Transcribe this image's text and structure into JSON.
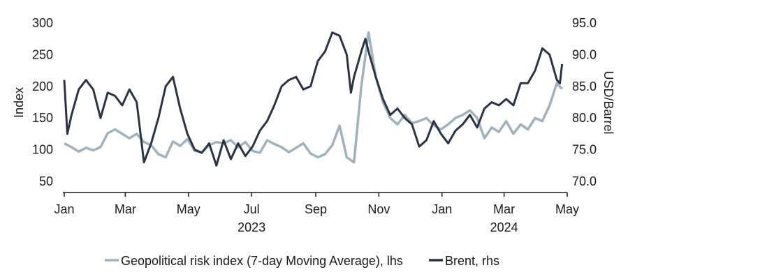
{
  "chart_data": {
    "type": "line",
    "title": "",
    "ylabel_left": "Index",
    "ylabel_right": "USD/Barrel",
    "ylim_left": [
      50,
      300
    ],
    "ylim_right": [
      70,
      95
    ],
    "yticks_left": [
      "300",
      "250",
      "200",
      "150",
      "100",
      "50"
    ],
    "yticks_right": [
      "95.0",
      "90.0",
      "85.0",
      "80.0",
      "75.0",
      "70.0"
    ],
    "x_tick_labels": [
      "Jan",
      "Mar",
      "May",
      "Jul",
      "Sep",
      "Nov",
      "Jan",
      "Mar",
      "May"
    ],
    "x_ticks": [
      "2023-01-01",
      "2023-03-01",
      "2023-05-01",
      "2023-07-01",
      "2023-09-01",
      "2023-11-01",
      "2024-01-01",
      "2024-03-01",
      "2024-05-01"
    ],
    "x_year_labels": [
      {
        "label": "2023",
        "date": "2023-07-01"
      },
      {
        "label": "2024",
        "date": "2024-03-01"
      }
    ],
    "xlim": [
      "2023-01-01",
      "2024-05-01"
    ],
    "grid": false,
    "legend_position": "bottom",
    "series": [
      {
        "name": "Geopolitical risk index (7-day Moving Average), lhs",
        "axis": "left",
        "color": "#9fb3bd",
        "points": [
          [
            "2023-01-01",
            110
          ],
          [
            "2023-01-08",
            104
          ],
          [
            "2023-01-15",
            97
          ],
          [
            "2023-01-22",
            103
          ],
          [
            "2023-01-29",
            99
          ],
          [
            "2023-02-05",
            104
          ],
          [
            "2023-02-12",
            126
          ],
          [
            "2023-02-19",
            132
          ],
          [
            "2023-02-26",
            125
          ],
          [
            "2023-03-05",
            118
          ],
          [
            "2023-03-12",
            125
          ],
          [
            "2023-03-19",
            112
          ],
          [
            "2023-03-26",
            107
          ],
          [
            "2023-04-02",
            93
          ],
          [
            "2023-04-09",
            88
          ],
          [
            "2023-04-16",
            113
          ],
          [
            "2023-04-23",
            106
          ],
          [
            "2023-04-30",
            117
          ],
          [
            "2023-05-07",
            98
          ],
          [
            "2023-05-14",
            96
          ],
          [
            "2023-05-21",
            107
          ],
          [
            "2023-05-28",
            112
          ],
          [
            "2023-06-04",
            110
          ],
          [
            "2023-06-11",
            115
          ],
          [
            "2023-06-18",
            104
          ],
          [
            "2023-06-25",
            112
          ],
          [
            "2023-07-02",
            98
          ],
          [
            "2023-07-09",
            95
          ],
          [
            "2023-07-16",
            115
          ],
          [
            "2023-07-23",
            109
          ],
          [
            "2023-07-30",
            104
          ],
          [
            "2023-08-06",
            96
          ],
          [
            "2023-08-13",
            103
          ],
          [
            "2023-08-20",
            110
          ],
          [
            "2023-08-27",
            94
          ],
          [
            "2023-09-03",
            88
          ],
          [
            "2023-09-10",
            93
          ],
          [
            "2023-09-17",
            107
          ],
          [
            "2023-09-24",
            138
          ],
          [
            "2023-10-01",
            88
          ],
          [
            "2023-10-08",
            80
          ],
          [
            "2023-10-15",
            200
          ],
          [
            "2023-10-22",
            285
          ],
          [
            "2023-10-29",
            215
          ],
          [
            "2023-11-05",
            175
          ],
          [
            "2023-11-12",
            150
          ],
          [
            "2023-11-19",
            140
          ],
          [
            "2023-11-26",
            155
          ],
          [
            "2023-12-03",
            142
          ],
          [
            "2023-12-10",
            145
          ],
          [
            "2023-12-17",
            150
          ],
          [
            "2023-12-24",
            138
          ],
          [
            "2023-12-31",
            132
          ],
          [
            "2024-01-07",
            140
          ],
          [
            "2024-01-14",
            150
          ],
          [
            "2024-01-21",
            155
          ],
          [
            "2024-01-28",
            162
          ],
          [
            "2024-02-04",
            150
          ],
          [
            "2024-02-11",
            118
          ],
          [
            "2024-02-18",
            135
          ],
          [
            "2024-02-25",
            128
          ],
          [
            "2024-03-03",
            145
          ],
          [
            "2024-03-10",
            125
          ],
          [
            "2024-03-17",
            140
          ],
          [
            "2024-03-24",
            132
          ],
          [
            "2024-03-31",
            150
          ],
          [
            "2024-04-07",
            145
          ],
          [
            "2024-04-14",
            170
          ],
          [
            "2024-04-21",
            205
          ],
          [
            "2024-04-26",
            196
          ]
        ]
      },
      {
        "name": "Brent, rhs",
        "axis": "right",
        "color": "#2b3445",
        "points": [
          [
            "2023-01-01",
            86.0
          ],
          [
            "2023-01-04",
            77.5
          ],
          [
            "2023-01-08",
            80.5
          ],
          [
            "2023-01-15",
            84.5
          ],
          [
            "2023-01-22",
            86.0
          ],
          [
            "2023-01-29",
            84.5
          ],
          [
            "2023-02-05",
            80.0
          ],
          [
            "2023-02-12",
            84.0
          ],
          [
            "2023-02-19",
            83.5
          ],
          [
            "2023-02-26",
            82.0
          ],
          [
            "2023-03-05",
            84.5
          ],
          [
            "2023-03-12",
            82.5
          ],
          [
            "2023-03-19",
            73.0
          ],
          [
            "2023-03-26",
            76.0
          ],
          [
            "2023-04-02",
            80.0
          ],
          [
            "2023-04-09",
            85.0
          ],
          [
            "2023-04-16",
            86.5
          ],
          [
            "2023-04-23",
            81.5
          ],
          [
            "2023-04-30",
            77.5
          ],
          [
            "2023-05-07",
            75.0
          ],
          [
            "2023-05-14",
            74.5
          ],
          [
            "2023-05-21",
            76.0
          ],
          [
            "2023-05-28",
            72.5
          ],
          [
            "2023-06-04",
            76.5
          ],
          [
            "2023-06-11",
            73.5
          ],
          [
            "2023-06-18",
            76.0
          ],
          [
            "2023-06-25",
            74.0
          ],
          [
            "2023-07-02",
            75.5
          ],
          [
            "2023-07-09",
            78.0
          ],
          [
            "2023-07-16",
            79.5
          ],
          [
            "2023-07-23",
            82.0
          ],
          [
            "2023-07-30",
            85.0
          ],
          [
            "2023-08-06",
            86.0
          ],
          [
            "2023-08-13",
            86.5
          ],
          [
            "2023-08-20",
            84.5
          ],
          [
            "2023-08-27",
            85.0
          ],
          [
            "2023-09-03",
            89.0
          ],
          [
            "2023-09-10",
            90.5
          ],
          [
            "2023-09-17",
            93.5
          ],
          [
            "2023-09-24",
            93.0
          ],
          [
            "2023-10-01",
            90.0
          ],
          [
            "2023-10-05",
            84.0
          ],
          [
            "2023-10-08",
            86.5
          ],
          [
            "2023-10-15",
            90.5
          ],
          [
            "2023-10-19",
            92.5
          ],
          [
            "2023-10-22",
            90.5
          ],
          [
            "2023-10-29",
            86.5
          ],
          [
            "2023-11-05",
            83.0
          ],
          [
            "2023-11-12",
            80.5
          ],
          [
            "2023-11-19",
            81.5
          ],
          [
            "2023-11-26",
            80.0
          ],
          [
            "2023-12-03",
            79.0
          ],
          [
            "2023-12-10",
            75.5
          ],
          [
            "2023-12-17",
            76.5
          ],
          [
            "2023-12-24",
            79.5
          ],
          [
            "2023-12-31",
            77.5
          ],
          [
            "2024-01-07",
            76.0
          ],
          [
            "2024-01-14",
            78.0
          ],
          [
            "2024-01-21",
            79.0
          ],
          [
            "2024-01-28",
            80.5
          ],
          [
            "2024-02-04",
            78.5
          ],
          [
            "2024-02-11",
            81.5
          ],
          [
            "2024-02-18",
            82.5
          ],
          [
            "2024-02-25",
            82.0
          ],
          [
            "2024-03-03",
            83.0
          ],
          [
            "2024-03-10",
            82.0
          ],
          [
            "2024-03-17",
            85.5
          ],
          [
            "2024-03-24",
            85.5
          ],
          [
            "2024-03-31",
            87.5
          ],
          [
            "2024-04-07",
            91.0
          ],
          [
            "2024-04-14",
            90.0
          ],
          [
            "2024-04-21",
            86.0
          ],
          [
            "2024-04-24",
            85.5
          ],
          [
            "2024-04-26",
            88.5
          ]
        ]
      }
    ]
  }
}
